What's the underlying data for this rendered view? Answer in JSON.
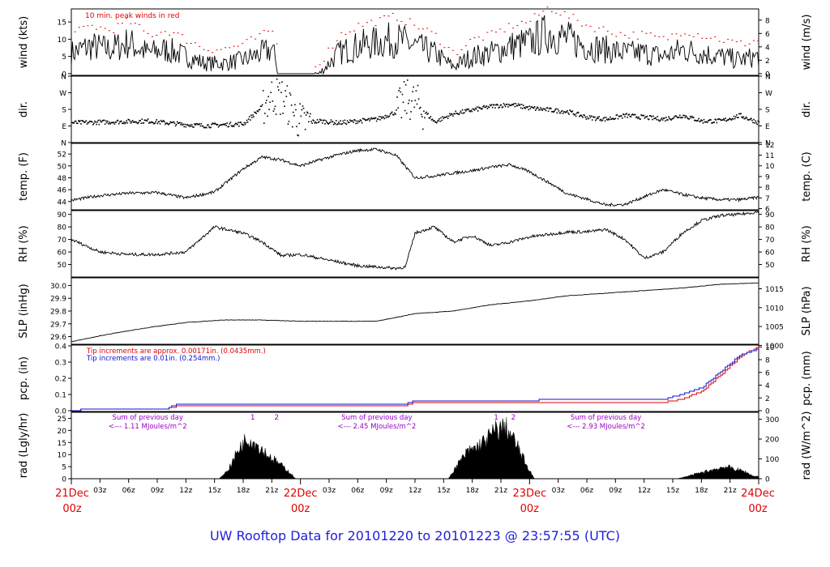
{
  "title": "UW Rooftop Data for 20101220  to  20101223 @ 23:57:55  (UTC)",
  "colors": {
    "title": "#1f1fd6",
    "date": "#e00000",
    "peak": "#e00000",
    "tip1": "#e00000",
    "tip2": "#1010d0",
    "rad_text": "#9a00c8"
  },
  "x_axis": {
    "hour_ticks": [
      "03z",
      "06z",
      "09z",
      "12z",
      "15z",
      "18z",
      "21z",
      "03z",
      "06z",
      "09z",
      "12z",
      "15z",
      "18z",
      "21z",
      "03z",
      "06z",
      "09z",
      "12z",
      "15z",
      "18z",
      "21z"
    ],
    "hour_tick_hours": [
      3,
      6,
      9,
      12,
      15,
      18,
      21,
      27,
      30,
      33,
      36,
      39,
      42,
      45,
      51,
      54,
      57,
      60,
      63,
      66,
      69
    ],
    "date_labels": [
      {
        "hour": 0,
        "day": "21Dec",
        "time": "00z"
      },
      {
        "hour": 24,
        "day": "22Dec",
        "time": "00z"
      },
      {
        "hour": 48,
        "day": "23Dec",
        "time": "00z"
      },
      {
        "hour": 72,
        "day": "24Dec",
        "time": "00z"
      }
    ]
  },
  "panels": {
    "wind": {
      "ylabel": "wind (kts)",
      "ylabel_right": "wind (m/s)",
      "yticks": [
        "0",
        "5",
        "10",
        "15"
      ],
      "yticks_right": [
        "0",
        "2",
        "4",
        "6",
        "8"
      ],
      "note": "10 min. peak winds in red"
    },
    "dir": {
      "ylabel": "dir.",
      "ylabel_right": "dir.",
      "yticks": [
        "N",
        "E",
        "S",
        "W",
        "N"
      ],
      "yticks_right": [
        "N",
        "E",
        "S",
        "W",
        "N"
      ]
    },
    "temp": {
      "ylabel": "temp. (F)",
      "ylabel_right": "temp. (C)",
      "yticks": [
        "44",
        "46",
        "48",
        "50",
        "52"
      ],
      "yticks_right": [
        "6",
        "7",
        "8",
        "9",
        "10",
        "11",
        "12"
      ]
    },
    "rh": {
      "ylabel": "RH (%)",
      "ylabel_right": "RH (%)",
      "yticks": [
        "50",
        "60",
        "70",
        "80",
        "90"
      ],
      "yticks_right": [
        "50",
        "60",
        "70",
        "80",
        "90"
      ]
    },
    "slp": {
      "ylabel": "SLP (inHg)",
      "ylabel_right": "SLP (hPa)",
      "yticks": [
        "29.6",
        "29.7",
        "29.8",
        "29.9",
        "30.0"
      ],
      "yticks_right": [
        "1000",
        "1005",
        "1010",
        "1015"
      ]
    },
    "pcp": {
      "ylabel": "pcp. (in)",
      "ylabel_right": "pcp. (mm)",
      "yticks": [
        "0.0",
        "0.1",
        "0.2",
        "0.3",
        "0.4"
      ],
      "yticks_right": [
        "0",
        "2",
        "4",
        "6",
        "8",
        "10"
      ],
      "note1": "Tip increments are approx. 0.00171in. (0.0435mm.)",
      "note2": "Tip increments are 0.01in. (0.254mm.)"
    },
    "rad": {
      "ylabel": "rad (Lgly/hr)",
      "ylabel_right": "rad (W/m^2)",
      "yticks": [
        "0",
        "5",
        "10",
        "15",
        "20",
        "25"
      ],
      "yticks_right": [
        "0",
        "100",
        "200",
        "300"
      ],
      "sums": [
        {
          "hour": 8,
          "line1": "Sum of previous day",
          "line2": "<--- 1.11 MJoules/m^2"
        },
        {
          "hour": 32,
          "line1": "Sum of previous day",
          "line2": "<--- 2.45 MJoules/m^2"
        },
        {
          "hour": 56,
          "line1": "Sum of previous day",
          "line2": "<--- 2.93 MJoules/m^2"
        }
      ],
      "markers": [
        {
          "hour": 19,
          "label": "1"
        },
        {
          "hour": 21.5,
          "label": "2"
        },
        {
          "hour": 44.5,
          "label": "1"
        },
        {
          "hour": 46.3,
          "label": "2"
        }
      ]
    }
  },
  "chart_data": {
    "type": "line",
    "x_unit": "hours since 21Dec 00z",
    "series": [
      {
        "name": "wind",
        "unit": "kts",
        "x": [
          0,
          2,
          4,
          6,
          8,
          10,
          12,
          14,
          16,
          18,
          20,
          21,
          22,
          24,
          26,
          28,
          30,
          32,
          34,
          36,
          38,
          40,
          42,
          44,
          46,
          48,
          50,
          52,
          54,
          56,
          58,
          60,
          62,
          64,
          66,
          68,
          70,
          72
        ],
        "y": [
          6,
          8,
          7,
          9,
          6,
          7,
          5,
          3,
          3,
          4,
          6,
          7,
          0,
          0,
          0,
          6,
          8,
          9,
          10,
          8,
          6,
          2,
          5,
          6,
          8,
          9,
          12,
          10,
          8,
          7,
          6,
          6,
          5,
          7,
          6,
          5,
          4,
          5
        ]
      },
      {
        "name": "temp",
        "unit": "F",
        "x": [
          0,
          3,
          6,
          9,
          12,
          15,
          18,
          20,
          22,
          24,
          26,
          28,
          30,
          32,
          34,
          36,
          38,
          40,
          42,
          44,
          46,
          48,
          50,
          52,
          54,
          56,
          58,
          60,
          62,
          64,
          66,
          68,
          70,
          72
        ],
        "y": [
          44.2,
          45.0,
          45.4,
          45.5,
          44.6,
          45.6,
          49.5,
          51.5,
          51.0,
          50.0,
          51.0,
          51.9,
          52.6,
          52.8,
          51.8,
          48.0,
          48.3,
          48.8,
          49.2,
          49.8,
          50.2,
          49.0,
          47.2,
          45.3,
          44.4,
          43.4,
          43.5,
          44.8,
          46.0,
          45.2,
          44.6,
          44.3,
          44.3,
          44.7
        ]
      },
      {
        "name": "RH",
        "unit": "%",
        "x": [
          0,
          3,
          6,
          9,
          12,
          15,
          18,
          20,
          22,
          24,
          26,
          28,
          30,
          32,
          34,
          35,
          36,
          38,
          40,
          42,
          44,
          46,
          48,
          50,
          52,
          54,
          56,
          58,
          60,
          62,
          64,
          66,
          68,
          70,
          72
        ],
        "y": [
          70,
          60,
          58,
          58,
          60,
          80,
          75,
          68,
          57,
          58,
          55,
          52,
          49,
          48,
          47,
          48,
          75,
          80,
          68,
          73,
          65,
          68,
          72,
          74,
          76,
          76,
          78,
          70,
          55,
          60,
          75,
          85,
          89,
          90,
          92
        ]
      },
      {
        "name": "SLP",
        "unit": "inHg",
        "x": [
          0,
          4,
          8,
          12,
          16,
          20,
          24,
          28,
          32,
          36,
          40,
          44,
          48,
          52,
          56,
          60,
          64,
          68,
          72
        ],
        "y": [
          29.56,
          29.62,
          29.67,
          29.71,
          29.73,
          29.73,
          29.72,
          29.72,
          29.72,
          29.78,
          29.8,
          29.85,
          29.88,
          29.92,
          29.94,
          29.96,
          29.98,
          30.01,
          30.02
        ]
      },
      {
        "name": "pcp",
        "unit": "in",
        "x": [
          0,
          2,
          10,
          11,
          35,
          36,
          62,
          64,
          66,
          68,
          70,
          72
        ],
        "y": [
          0.0,
          0.01,
          0.01,
          0.03,
          0.03,
          0.05,
          0.05,
          0.07,
          0.12,
          0.22,
          0.33,
          0.4
        ]
      },
      {
        "name": "pcp",
        "unit": "in",
        "x": [
          0,
          2,
          10,
          11,
          35,
          36,
          62,
          64,
          66,
          68,
          70,
          72
        ],
        "y": [
          0.0,
          0.01,
          0.01,
          0.04,
          0.04,
          0.06,
          0.07,
          0.1,
          0.14,
          0.24,
          0.34,
          0.38
        ]
      },
      {
        "name": "rad",
        "unit": "Lgly/hr",
        "x": [
          15.5,
          16.5,
          17.5,
          18.5,
          19.5,
          20.5,
          21.5,
          22.5,
          23.5,
          39.5,
          40.5,
          41.5,
          42.5,
          43.5,
          44.5,
          45.5,
          46.5,
          47.5,
          48.5,
          63.5,
          64.5,
          65.5,
          66.5,
          67.5,
          68.5,
          69.5,
          70.5,
          71.5
        ],
        "y": [
          0,
          4,
          12,
          17,
          14,
          10,
          7,
          4,
          0,
          0,
          6,
          11,
          13,
          16,
          20,
          21,
          15,
          7,
          0,
          0,
          1,
          2,
          3,
          4,
          5,
          4,
          3,
          1
        ]
      },
      {
        "name": "dir",
        "unit": "deg",
        "x": [
          0,
          4,
          8,
          12,
          14,
          16,
          18,
          20,
          21,
          22,
          24,
          26,
          28,
          30,
          32,
          34,
          35,
          36,
          38,
          40,
          42,
          44,
          46,
          48,
          50,
          52,
          54,
          56,
          58,
          60,
          62,
          64,
          66,
          68,
          70,
          72
        ],
        "y": [
          110,
          115,
          120,
          100,
          95,
          100,
          105,
          200,
          260,
          250,
          110,
          120,
          110,
          120,
          130,
          170,
          240,
          220,
          115,
          160,
          180,
          200,
          210,
          190,
          180,
          170,
          140,
          130,
          150,
          140,
          130,
          150,
          120,
          120,
          150,
          110
        ]
      }
    ]
  }
}
